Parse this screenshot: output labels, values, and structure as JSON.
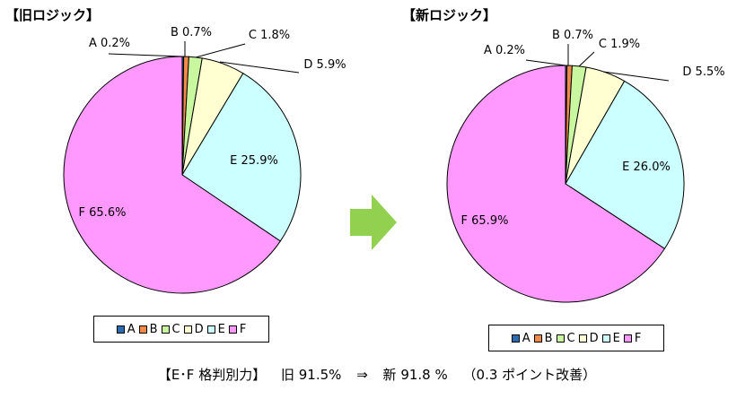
{
  "charts_header": {
    "old_title": "【旧ロジック】",
    "new_title": "【新ロジック】"
  },
  "colors": {
    "A": "#2b6cb0",
    "B": "#f08a4b",
    "C": "#c8f7a0",
    "D": "#ffffd2",
    "E": "#ccffff",
    "F": "#ff99ff",
    "arrow": "#92d050"
  },
  "chart_data": [
    {
      "type": "pie",
      "title": "【旧ロジック】",
      "categories": [
        "A",
        "B",
        "C",
        "D",
        "E",
        "F"
      ],
      "values": [
        0.2,
        0.7,
        1.8,
        5.9,
        25.9,
        65.6
      ],
      "labels": [
        "A 0.2%",
        "B 0.7%",
        "C 1.8%",
        "D 5.9%",
        "E 25.9%",
        "F 65.6%"
      ],
      "legend": [
        "A",
        "B",
        "C",
        "D",
        "E",
        "F"
      ],
      "legend_position": "bottom"
    },
    {
      "type": "pie",
      "title": "【新ロジック】",
      "categories": [
        "A",
        "B",
        "C",
        "D",
        "E",
        "F"
      ],
      "values": [
        0.2,
        0.7,
        1.9,
        5.5,
        26.0,
        65.9
      ],
      "labels": [
        "A 0.2%",
        "B 0.7%",
        "C 1.9%",
        "D 5.5%",
        "E 26.0%",
        "F 65.9%"
      ],
      "legend": [
        "A",
        "B",
        "C",
        "D",
        "E",
        "F"
      ],
      "legend_position": "bottom"
    }
  ],
  "footer": {
    "label": "【E･F 格判別力】",
    "old": "旧 91.5%",
    "arrow": "⇒",
    "new": "新 91.8  %",
    "note": "（0.3 ポイント改善）"
  }
}
